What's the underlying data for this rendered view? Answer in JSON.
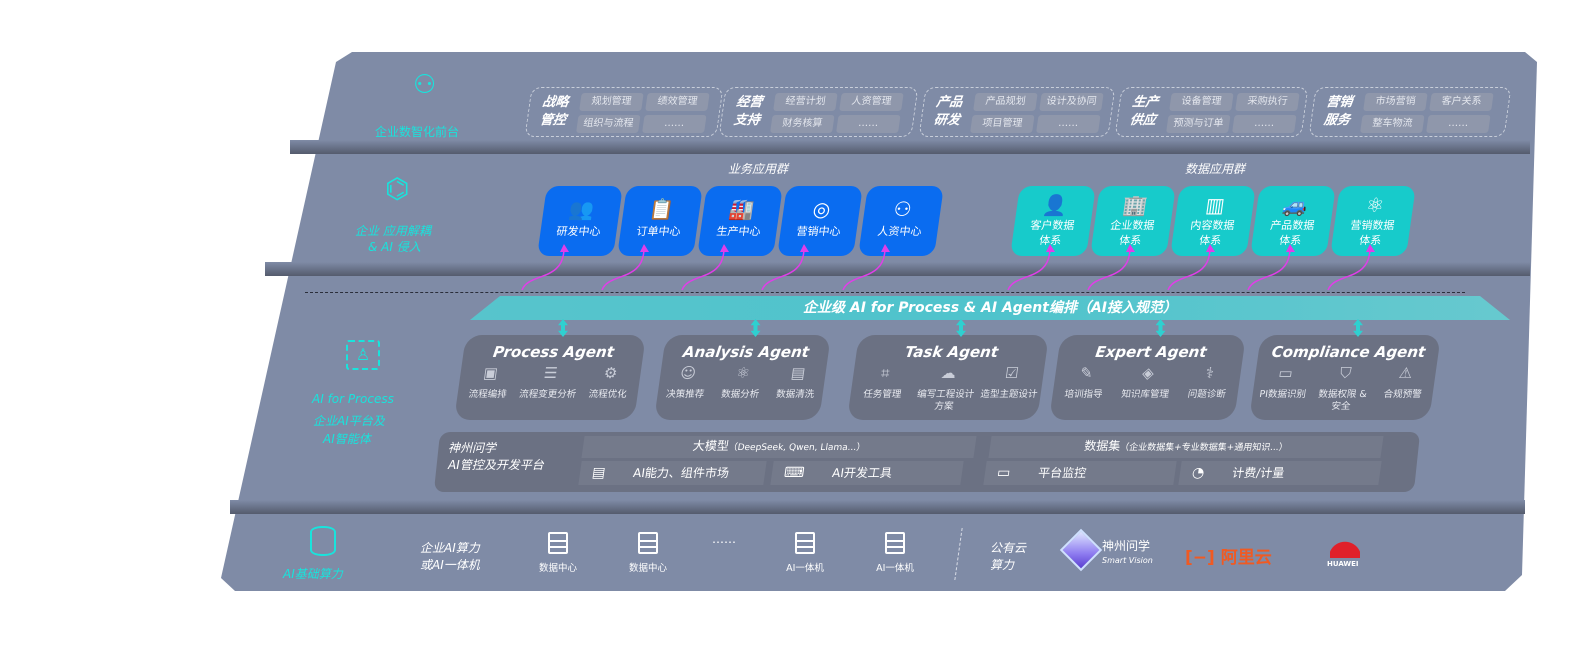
{
  "front": {
    "label": "企业数智化前台",
    "icon": "brain-icon",
    "groups": [
      {
        "title": [
          "战略",
          "管控"
        ],
        "tags": [
          "规划管理",
          "绩效管理",
          "组织与流程",
          "……"
        ]
      },
      {
        "title": [
          "经营",
          "支持"
        ],
        "tags": [
          "经营计划",
          "人资管理",
          "财务核算",
          "……"
        ]
      },
      {
        "title": [
          "产品",
          "研发"
        ],
        "tags": [
          "产品规划",
          "设计及协同",
          "项目管理",
          "……"
        ]
      },
      {
        "title": [
          "生产",
          "供应"
        ],
        "tags": [
          "设备管理",
          "采购执行",
          "预测与订单",
          "……"
        ]
      },
      {
        "title": [
          "营销",
          "服务"
        ],
        "tags": [
          "市场营销",
          "客户关系",
          "整车物流",
          "……"
        ]
      }
    ]
  },
  "apps": {
    "label_line1": "企业 应用解耦",
    "label_line2": "& AI 侵入",
    "icon": "molecule-icon",
    "business_title": "业务应用群",
    "business": [
      {
        "label": "研发中心",
        "icon": "team-icon"
      },
      {
        "label": "订单中心",
        "icon": "clipboard-icon"
      },
      {
        "label": "生产中心",
        "icon": "factory-icon"
      },
      {
        "label": "营销中心",
        "icon": "target-icon"
      },
      {
        "label": "人资中心",
        "icon": "hr-icon"
      }
    ],
    "data_title": "数据应用群",
    "data": [
      {
        "label": [
          "客户数据",
          "体系"
        ],
        "icon": "user-icon"
      },
      {
        "label": [
          "企业数据",
          "体系"
        ],
        "icon": "building-icon"
      },
      {
        "label": [
          "内容数据",
          "体系"
        ],
        "icon": "books-icon"
      },
      {
        "label": [
          "产品数据",
          "体系"
        ],
        "icon": "car-icon"
      },
      {
        "label": [
          "营销数据",
          "体系"
        ],
        "icon": "atom-icon"
      }
    ],
    "colors": {
      "business": "#0a6cf0",
      "data": "#17cbcb",
      "arrow": "#e03ee8"
    }
  },
  "orchestration": {
    "banner": "企业级 AI for Process & AI Agent编排（AI接入规范）"
  },
  "ai_process": {
    "label1": "AI for Process",
    "label2": "企业AI平台及",
    "label3": "AI智能体",
    "icon": "face-scan-icon",
    "agents": [
      {
        "name": "Process Agent",
        "items": [
          {
            "l": "流程编排",
            "i": "flow-chart-icon"
          },
          {
            "l": "流程变更分析",
            "i": "list-icon"
          },
          {
            "l": "流程优化",
            "i": "optimize-icon"
          }
        ]
      },
      {
        "name": "Analysis Agent",
        "items": [
          {
            "l": "决策推荐",
            "i": "head-icon"
          },
          {
            "l": "数据分析",
            "i": "atom-icon"
          },
          {
            "l": "数据清洗",
            "i": "clean-icon"
          }
        ]
      },
      {
        "name": "Task Agent",
        "items": [
          {
            "l": "任务管理",
            "i": "network-icon"
          },
          {
            "l": "编写工程设计方案",
            "i": "cloud-icon"
          },
          {
            "l": "造型主题设计",
            "i": "checklist-icon"
          }
        ]
      },
      {
        "name": "Expert Agent",
        "items": [
          {
            "l": "培训指导",
            "i": "training-icon"
          },
          {
            "l": "知识库管理",
            "i": "layers-icon"
          },
          {
            "l": "问题诊断",
            "i": "diagnose-icon"
          }
        ]
      },
      {
        "name": "Compliance Agent",
        "items": [
          {
            "l": "PI数据识别",
            "i": "id-card-icon"
          },
          {
            "l": "数据权限 & 安全",
            "i": "shield-icon"
          },
          {
            "l": "合规预警",
            "i": "alert-icon"
          }
        ]
      }
    ],
    "platform": {
      "label1": "神州问学",
      "label2": "AI管控及开发平台",
      "model": {
        "main": "大模型",
        "detail": "（DeepSeek, Qwen, Llama...）"
      },
      "dataset": {
        "main": "数据集",
        "detail": "（企业数据集+专业数据集+通用知识...）"
      },
      "tools": [
        {
          "l": "AI能力、组件市场",
          "i": "market-icon"
        },
        {
          "l": "AI开发工具",
          "i": "dev-tool-icon"
        },
        {
          "l": "平台监控",
          "i": "monitor-icon"
        },
        {
          "l": "计费/计量",
          "i": "gauge-icon"
        }
      ]
    }
  },
  "infra": {
    "label": "AI基础算力",
    "icon": "database-icon",
    "private": [
      "企业AI算力",
      "或AI一体机"
    ],
    "servers": [
      "数据中心",
      "数据中心",
      "AI一体机",
      "AI一体机"
    ],
    "ellipsis": "……",
    "public": [
      "公有云",
      "算力"
    ],
    "vendors": {
      "shenzhou": "神州问学",
      "shenzhou_en": "Smart Vision",
      "aliyun": "阿里云",
      "huawei": "HUAWEI"
    }
  }
}
